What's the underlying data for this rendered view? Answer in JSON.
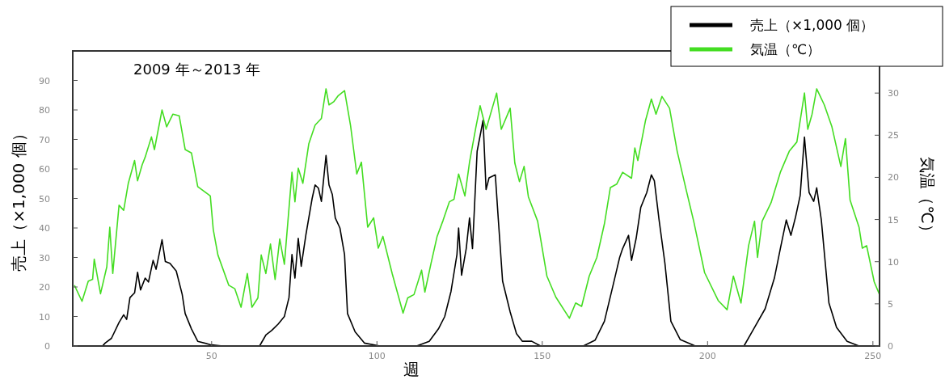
{
  "chart_data": {
    "type": "line",
    "xlabel": "週",
    "ylabel": "売上（×1,000 個）",
    "y2label": "気温（℃）",
    "annotations": [
      "2009 年～2013 年"
    ],
    "legend": "top right",
    "grid": false,
    "xlim": [
      8,
      252
    ],
    "xticks": [
      50,
      100,
      150,
      200,
      250
    ],
    "ylim": [
      0,
      100
    ],
    "yticks": [
      0,
      10,
      20,
      30,
      40,
      50,
      60,
      70,
      80,
      90
    ],
    "y2lim": [
      0,
      35
    ],
    "y2ticks": [
      0,
      5,
      10,
      15,
      20,
      25,
      30
    ],
    "series": [
      {
        "name": "売上（×1,000 個）",
        "color": "#000000",
        "axis": "y",
        "x": [
          8,
          17,
          17.8,
          19.7,
          22,
          23.4,
          24.3,
          25.3,
          26.7,
          27.6,
          28.5,
          29.9,
          30.9,
          32.3,
          33.2,
          34.1,
          35,
          36,
          37.4,
          39.3,
          41.1,
          42,
          43.9,
          45.8,
          49.5,
          53.3,
          64.5,
          66.4,
          68.2,
          70.1,
          72,
          73.4,
          74.3,
          75.2,
          76.2,
          77.1,
          78.5,
          80.4,
          81.3,
          82.3,
          83.2,
          84.6,
          85.5,
          86.5,
          87.4,
          88.8,
          90.2,
          91.1,
          93.4,
          96.2,
          100.9,
          112,
          115.8,
          118.6,
          120.5,
          122.4,
          124.2,
          124.7,
          125.6,
          127,
          128,
          128.9,
          130.3,
          132.1,
          133,
          133.9,
          135.8,
          136.7,
          138,
          140.3,
          142.2,
          144,
          146.8,
          149.5,
          162.4,
          166,
          168.8,
          171.5,
          173.4,
          174.3,
          176.1,
          177,
          178.4,
          179.8,
          181.6,
          183,
          183.9,
          185.3,
          187.1,
          188.9,
          191.7,
          196.3,
          211,
          213.7,
          217.4,
          220.2,
          222,
          223.8,
          225.2,
          226.6,
          228,
          229.3,
          230.7,
          232.1,
          233,
          234.4,
          236.7,
          239,
          242.2,
          245.8,
          252
        ],
        "values": [
          0,
          0,
          1,
          2.6,
          8,
          10.6,
          9,
          16.4,
          18,
          25,
          19,
          23,
          21.7,
          29,
          26,
          31,
          36,
          28.6,
          28,
          25.4,
          17.5,
          11,
          5.8,
          1.6,
          0.5,
          0,
          0,
          3.7,
          5.3,
          7.4,
          10,
          16.4,
          31,
          23,
          36.5,
          27,
          37.6,
          50,
          54.6,
          53.5,
          49,
          64.6,
          54.6,
          51.4,
          43.4,
          40,
          31,
          11,
          4.8,
          1,
          0,
          0,
          1.6,
          5.8,
          10,
          18.5,
          31,
          40,
          24,
          33,
          43.4,
          33,
          66,
          76.5,
          53,
          57,
          58,
          43,
          22,
          11.5,
          4.2,
          1.6,
          1.6,
          0,
          0,
          2,
          8.4,
          21,
          30,
          33,
          37.5,
          29,
          36.5,
          47,
          52,
          58,
          56,
          43,
          28,
          8.4,
          2.2,
          0,
          0,
          5.3,
          12.6,
          23,
          33,
          42.7,
          37.5,
          43.7,
          51,
          70.8,
          52,
          49,
          53.6,
          42.7,
          14.6,
          6.3,
          1.6,
          0,
          0
        ]
      },
      {
        "name": "気温（℃）",
        "color": "#44dd22",
        "axis": "y2",
        "x": [
          8.5,
          10.8,
          12.7,
          14,
          14.5,
          16.4,
          18.3,
          19.2,
          20.1,
          22,
          23.4,
          24.8,
          26.7,
          27.6,
          29,
          29.9,
          31.8,
          32.7,
          35,
          36.4,
          38.3,
          40.2,
          42,
          43.9,
          45.8,
          49.6,
          50.5,
          51.9,
          55.2,
          57,
          58.9,
          60.8,
          62.2,
          64,
          65,
          66.4,
          67.8,
          69.2,
          70.6,
          72,
          74.3,
          75.2,
          76.2,
          77.6,
          79.4,
          81.3,
          83.2,
          84.6,
          85.5,
          87,
          88.3,
          90.2,
          92,
          93.9,
          95.3,
          97.2,
          99,
          100.4,
          101.8,
          104.6,
          107.9,
          109.3,
          111.2,
          113.5,
          114.5,
          116.3,
          118.2,
          120,
          121.9,
          123.3,
          124.7,
          126.6,
          128,
          129.9,
          131.2,
          133,
          136.2,
          137.6,
          140.3,
          141.7,
          143.1,
          144.5,
          145.8,
          148.6,
          151.4,
          154.1,
          158.2,
          160.1,
          161.9,
          164.2,
          166.5,
          168.8,
          170.6,
          172.5,
          174.3,
          177,
          178,
          178.9,
          181.2,
          183,
          184.4,
          186.2,
          188.5,
          190.8,
          193.6,
          195.8,
          199.1,
          203.2,
          205.9,
          207.8,
          210.1,
          212.4,
          214.2,
          215.1,
          216.5,
          219.2,
          222,
          224.7,
          227,
          229.3,
          230.3,
          231.6,
          233,
          235.3,
          237.6,
          240.3,
          241.7,
          243.1,
          245.8,
          246.8,
          248.1,
          250.4,
          252
        ],
        "values": [
          7.2,
          5.3,
          7.7,
          7.9,
          10.3,
          6.2,
          9.4,
          14.1,
          8.6,
          16.7,
          16.1,
          19.3,
          22,
          19.6,
          21.5,
          22.4,
          24.8,
          23.3,
          28,
          26,
          27.5,
          27.3,
          23.3,
          22.9,
          18.9,
          17.8,
          13.8,
          10.8,
          7.2,
          6.8,
          4.6,
          8.6,
          4.6,
          5.7,
          10.8,
          8.6,
          12.1,
          7.9,
          12.7,
          9.7,
          20.6,
          17.1,
          21.1,
          19.3,
          24,
          26.2,
          27,
          30.5,
          28.6,
          29,
          29.7,
          30.3,
          26.2,
          20.4,
          21.8,
          14.1,
          15.2,
          11.6,
          13,
          8.6,
          3.9,
          5.7,
          6.1,
          9,
          6.4,
          9.7,
          13,
          14.9,
          17.1,
          17.4,
          20.4,
          17.8,
          21.8,
          25.9,
          28.5,
          25.7,
          30,
          25.7,
          28.2,
          21.7,
          19.5,
          21.3,
          17.7,
          14.8,
          8.3,
          5.8,
          3.3,
          5.1,
          4.7,
          8.3,
          10.5,
          14.5,
          18.8,
          19.2,
          20.6,
          19.9,
          23.5,
          22,
          26.7,
          29.3,
          27.5,
          29.6,
          28.2,
          23.1,
          18.4,
          14.8,
          8.7,
          5.4,
          4.3,
          8.3,
          5.1,
          11.9,
          14.8,
          10.5,
          14.8,
          17,
          20.6,
          23.1,
          24.2,
          30,
          25.7,
          27.5,
          30.5,
          28.6,
          26,
          21.3,
          24.6,
          17.3,
          14.1,
          11.6,
          11.9,
          7.6,
          6.1
        ]
      }
    ]
  }
}
